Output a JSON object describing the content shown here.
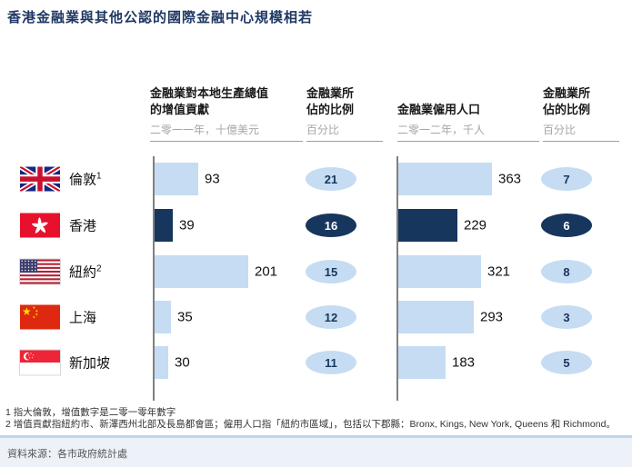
{
  "title": "香港金融業與其他公認的國際金融中心規模相若",
  "columns": [
    {
      "line1": "金融業對本地生產總值",
      "line2": "的增值貢獻",
      "subtitle": "二零一一年，十億美元"
    },
    {
      "line1": "金融業所",
      "line2": "佔的比例",
      "subtitle": "百分比"
    },
    {
      "line1": "金融業僱用人口",
      "line2": "",
      "subtitle": "二零一二年，千人"
    },
    {
      "line1": "金融業所",
      "line2": "佔的比例",
      "subtitle": "百分比"
    }
  ],
  "rows": [
    {
      "city": "倫敦",
      "marker": "1",
      "flag": "uk-flag",
      "gdp": 93,
      "gdp_pct": 21,
      "emp": 363,
      "emp_pct": 7,
      "highlight": false
    },
    {
      "city": "香港",
      "marker": "",
      "flag": "hk-flag",
      "gdp": 39,
      "gdp_pct": 16,
      "emp": 229,
      "emp_pct": 6,
      "highlight": true
    },
    {
      "city": "紐約",
      "marker": "2",
      "flag": "us-flag",
      "gdp": 201,
      "gdp_pct": 15,
      "emp": 321,
      "emp_pct": 8,
      "highlight": false
    },
    {
      "city": "上海",
      "marker": "",
      "flag": "cn-flag",
      "gdp": 35,
      "gdp_pct": 12,
      "emp": 293,
      "emp_pct": 3,
      "highlight": false
    },
    {
      "city": "新加坡",
      "marker": "",
      "flag": "sg-flag",
      "gdp": 30,
      "gdp_pct": 11,
      "emp": 183,
      "emp_pct": 5,
      "highlight": false
    }
  ],
  "chart_data": [
    {
      "type": "bar",
      "orientation": "horizontal",
      "title": "金融業對本地生產總值的增值貢獻",
      "subtitle": "二零一一年，十億美元",
      "categories": [
        "倫敦",
        "香港",
        "紐約",
        "上海",
        "新加坡"
      ],
      "values": [
        93,
        39,
        201,
        35,
        30
      ],
      "xmax": 201,
      "highlight_category": "香港",
      "bar_color": "#C5DCF3",
      "highlight_color": "#17365D",
      "grid": false,
      "legend": "none"
    },
    {
      "type": "bar",
      "display": "oval-badge",
      "title": "金融業所佔的比例",
      "subtitle": "百分比",
      "categories": [
        "倫敦",
        "香港",
        "紐約",
        "上海",
        "新加坡"
      ],
      "values": [
        21,
        16,
        15,
        12,
        11
      ],
      "highlight_category": "香港"
    },
    {
      "type": "bar",
      "orientation": "horizontal",
      "title": "金融業僱用人口",
      "subtitle": "二零一二年，千人",
      "categories": [
        "倫敦",
        "香港",
        "紐約",
        "上海",
        "新加坡"
      ],
      "values": [
        363,
        229,
        321,
        293,
        183
      ],
      "xmax": 363,
      "highlight_category": "香港",
      "bar_color": "#C5DCF3",
      "highlight_color": "#17365D",
      "grid": false,
      "legend": "none"
    },
    {
      "type": "bar",
      "display": "oval-badge",
      "title": "金融業所佔的比例",
      "subtitle": "百分比",
      "categories": [
        "倫敦",
        "香港",
        "紐約",
        "上海",
        "新加坡"
      ],
      "values": [
        7,
        6,
        8,
        3,
        5
      ],
      "highlight_category": "香港"
    }
  ],
  "footnotes": [
    "1 指大倫敦，增值數字是二零一零年數字",
    "2 增值貢獻指紐約市、新澤西州北部及長島都會區；僱用人口指「紐約市區域」，包括以下郡縣：Bronx, Kings, New York, Queens 和 Richmond。"
  ],
  "source": "資料來源：各市政府統計處",
  "colors": {
    "bar_light": "#C5DCF3",
    "bar_dark": "#17365D",
    "title_color": "#1F3864",
    "subtitle_gray": "#A6A6A6",
    "divider_blue": "#BDD7EE",
    "footer_bg": "#EDF2F8"
  }
}
